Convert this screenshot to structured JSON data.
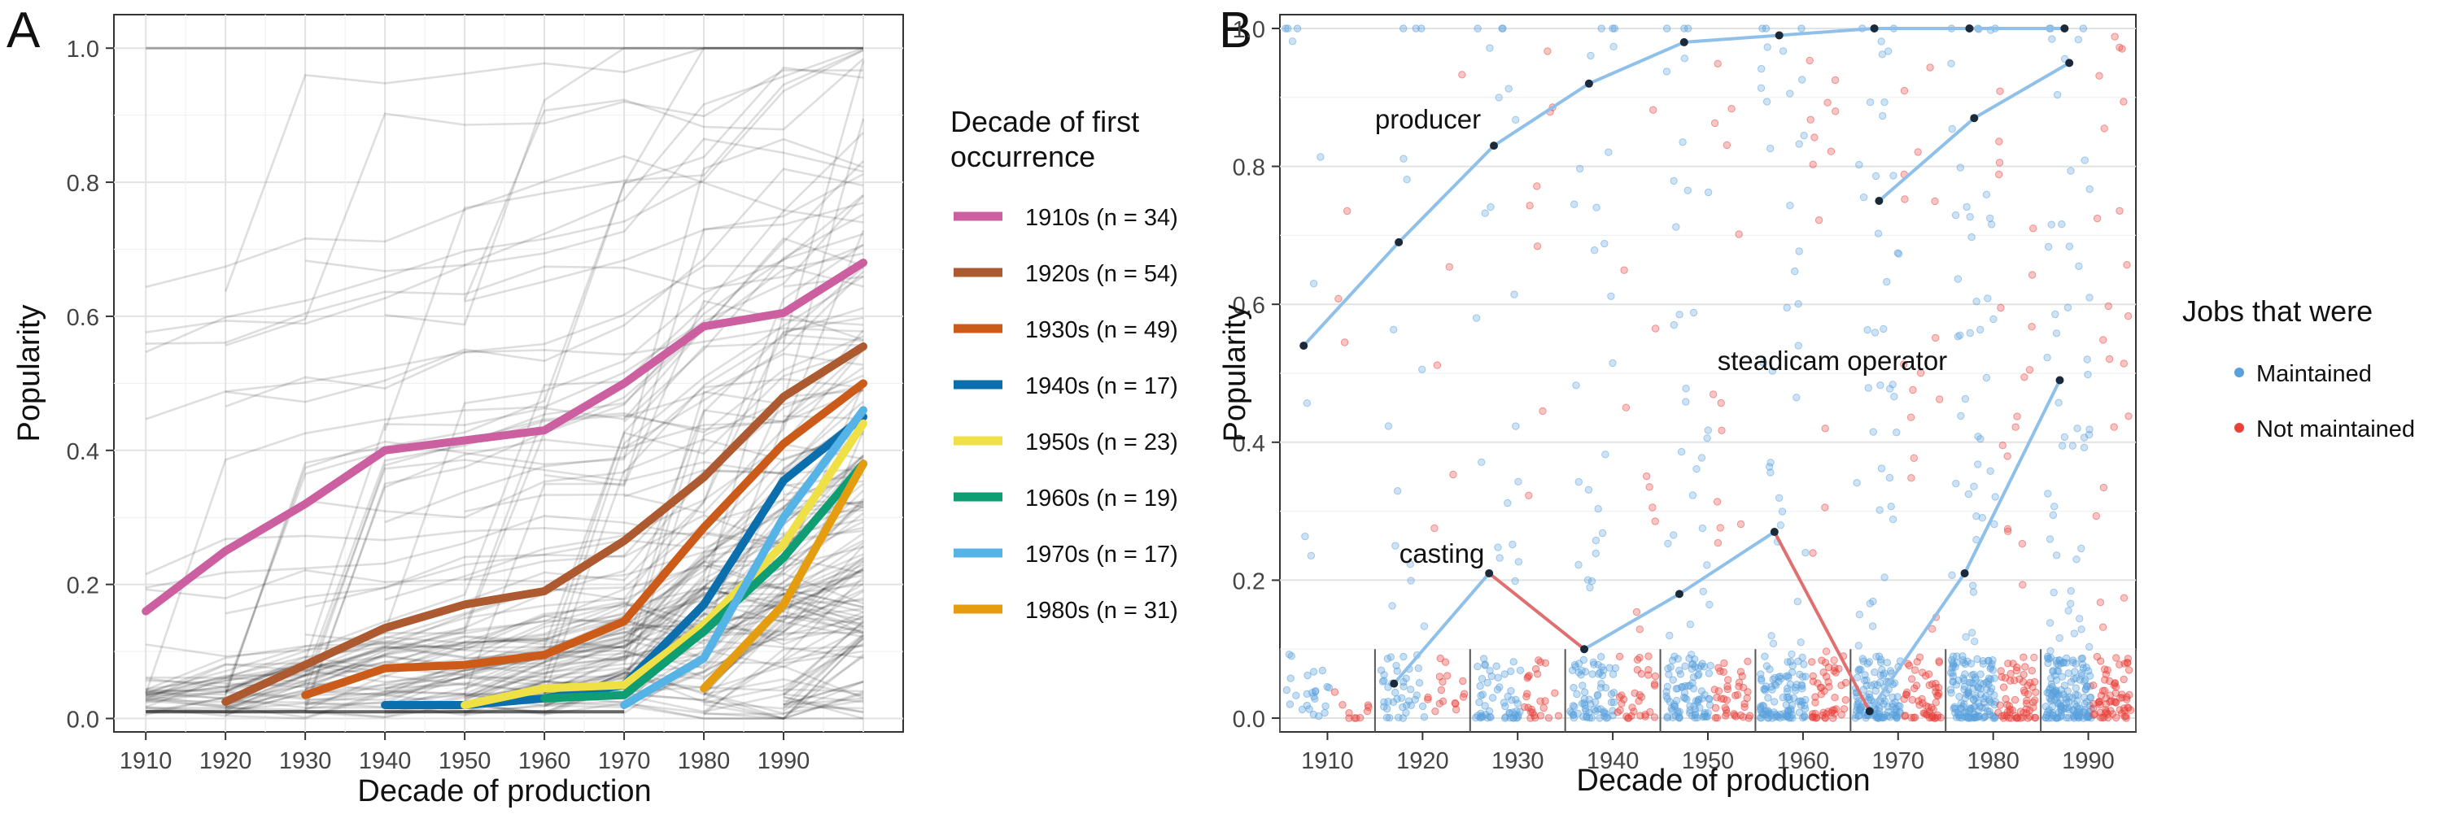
{
  "chart_data": [
    {
      "panel_label": "A",
      "type": "line",
      "xlabel": "Decade of production",
      "ylabel": "Popularity",
      "x": [
        1910,
        1920,
        1930,
        1940,
        1950,
        1960,
        1970,
        1980,
        1990,
        2000
      ],
      "x_ticks": [
        "1910",
        "1920",
        "1930",
        "1940",
        "1950",
        "1960",
        "1970",
        "1980",
        "1990"
      ],
      "y_ticks": [
        "0.0",
        "0.2",
        "0.4",
        "0.6",
        "0.8",
        "1.0"
      ],
      "xlim": [
        1906,
        2005
      ],
      "ylim": [
        -0.02,
        1.05
      ],
      "grid": true,
      "background_lines": "many grey individual job trajectories",
      "legend": {
        "title_lines": [
          "Decade of first",
          "occurrence"
        ],
        "placement": "right"
      },
      "series": [
        {
          "name": "1910s (n = 34)",
          "color": "#cc5fa0",
          "x": [
            1910,
            1920,
            1930,
            1940,
            1950,
            1960,
            1970,
            1980,
            1990,
            2000
          ],
          "values": [
            0.16,
            0.25,
            0.32,
            0.4,
            0.415,
            0.43,
            0.5,
            0.585,
            0.605,
            0.68
          ]
        },
        {
          "name": "1920s (n = 54)",
          "color": "#ad5a30",
          "x": [
            1920,
            1930,
            1940,
            1950,
            1960,
            1970,
            1980,
            1990,
            2000
          ],
          "values": [
            0.025,
            0.08,
            0.135,
            0.17,
            0.19,
            0.265,
            0.36,
            0.48,
            0.555
          ]
        },
        {
          "name": "1930s (n = 49)",
          "color": "#cc5b1a",
          "x": [
            1930,
            1940,
            1950,
            1960,
            1970,
            1980,
            1990,
            2000
          ],
          "values": [
            0.035,
            0.075,
            0.08,
            0.095,
            0.145,
            0.285,
            0.41,
            0.5
          ]
        },
        {
          "name": "1940s (n = 17)",
          "color": "#0b6fae",
          "x": [
            1940,
            1950,
            1960,
            1970,
            1980,
            1990,
            2000
          ],
          "values": [
            0.02,
            0.02,
            0.03,
            0.05,
            0.17,
            0.355,
            0.45
          ]
        },
        {
          "name": "1950s (n = 23)",
          "color": "#efe145",
          "x": [
            1950,
            1960,
            1970,
            1980,
            1990,
            2000
          ],
          "values": [
            0.02,
            0.045,
            0.05,
            0.14,
            0.26,
            0.44
          ]
        },
        {
          "name": "1960s (n = 19)",
          "color": "#0f9e73",
          "x": [
            1960,
            1970,
            1980,
            1990,
            2000
          ],
          "values": [
            0.03,
            0.035,
            0.13,
            0.24,
            0.38
          ]
        },
        {
          "name": "1970s (n = 17)",
          "color": "#56b3e5",
          "x": [
            1970,
            1980,
            1990,
            2000
          ],
          "values": [
            0.02,
            0.09,
            0.3,
            0.46
          ]
        },
        {
          "name": "1980s (n = 31)",
          "color": "#e49d0f",
          "x": [
            1980,
            1990,
            2000
          ],
          "values": [
            0.045,
            0.17,
            0.38
          ]
        }
      ]
    },
    {
      "panel_label": "B",
      "type": "scatter",
      "xlabel": "Decade of production",
      "ylabel": "Popularity",
      "x_ticks": [
        "1910",
        "1920",
        "1930",
        "1940",
        "1950",
        "1960",
        "1970",
        "1980",
        "1990"
      ],
      "y_ticks": [
        "0.0",
        "0.2",
        "0.4",
        "0.6",
        "0.8",
        "1.0"
      ],
      "xlim": [
        1905,
        1995
      ],
      "ylim": [
        -0.02,
        1.02
      ],
      "grid": true,
      "legend": {
        "title": "Jobs that were",
        "placement": "right",
        "items": [
          {
            "name": "Maintained",
            "color": "#5aa0dc"
          },
          {
            "name": "Not maintained",
            "color": "#e8403a"
          }
        ]
      },
      "highlighted_jobs": [
        {
          "label": "producer",
          "x": [
            1910,
            1920,
            1930,
            1940,
            1950,
            1960,
            1970,
            1980,
            1990
          ],
          "values": [
            0.54,
            0.69,
            0.83,
            0.92,
            0.98,
            0.99,
            1.0,
            1.0,
            1.0
          ]
        },
        {
          "label": "steadicam operator",
          "x": [
            1970,
            1980,
            1990
          ],
          "values": [
            0.75,
            0.87,
            0.95
          ]
        },
        {
          "label": "casting",
          "x": [
            1920,
            1930,
            1940,
            1950,
            1960,
            1970,
            1980,
            1990
          ],
          "values": [
            0.05,
            0.21,
            0.1,
            0.18,
            0.27,
            0.01,
            0.21,
            0.49
          ]
        }
      ]
    }
  ]
}
